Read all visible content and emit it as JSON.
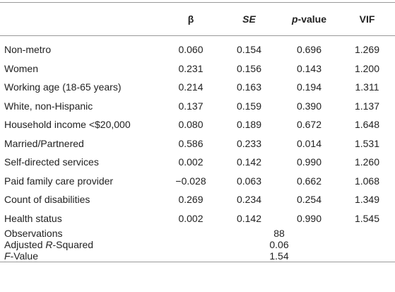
{
  "table": {
    "header": [
      "β",
      "SE",
      [
        "p",
        "-value"
      ],
      "VIF"
    ],
    "rows": [
      [
        "Non-metro",
        "0.060",
        "0.154",
        "0.696",
        "1.269"
      ],
      [
        "Women",
        "0.231",
        "0.156",
        "0.143",
        "1.200"
      ],
      [
        "Working age (18-65 years)",
        "0.214",
        "0.163",
        "0.194",
        "1.311"
      ],
      [
        "White, non-Hispanic",
        "0.137",
        "0.159",
        "0.390",
        "1.137"
      ],
      [
        "Household income <$20,000",
        "0.080",
        "0.189",
        "0.672",
        "1.648"
      ],
      [
        "Married/Partnered",
        "0.586",
        "0.233",
        "0.014",
        "1.531"
      ],
      [
        "Self-directed services",
        "0.002",
        "0.142",
        "0.990",
        "1.260"
      ],
      [
        "Paid family care provider",
        "−0.028",
        "0.063",
        "0.662",
        "1.068"
      ],
      [
        "Count of disabilities",
        "0.269",
        "0.234",
        "0.254",
        "1.349"
      ],
      [
        "Health status",
        "0.002",
        "0.142",
        "0.990",
        "1.545"
      ]
    ],
    "summary": [
      {
        "label": [
          "Observations"
        ],
        "value": "88"
      },
      {
        "label": [
          "Adjusted ",
          "R",
          "-Squared"
        ],
        "value": "0.06"
      },
      {
        "label": [
          "F",
          "-Value"
        ],
        "value": "1.54"
      }
    ]
  }
}
